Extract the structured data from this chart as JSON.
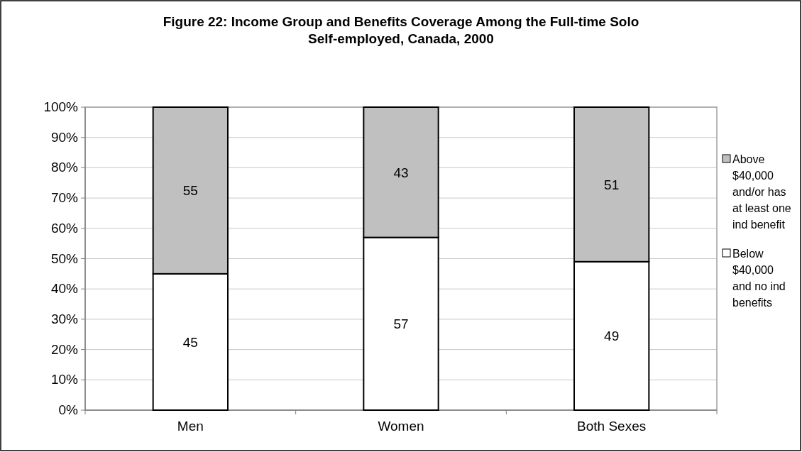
{
  "chart_data": {
    "type": "bar",
    "title": "Figure 22: Income Group and Benefits Coverage Among the Full-time Solo Self-employed, Canada, 2000",
    "categories": [
      "Men",
      "Women",
      "Both Sexes"
    ],
    "series": [
      {
        "name": "Below $40,000 and no ind benefits",
        "color": "#ffffff",
        "values": [
          45,
          57,
          49
        ]
      },
      {
        "name": "Above $40,000 and/or has at least one ind benefit",
        "color": "#c0c0c0",
        "values": [
          55,
          43,
          51
        ]
      }
    ],
    "stacked": true,
    "data_labels": true,
    "grid": "y",
    "legend": "right",
    "ylim": [
      0,
      100
    ],
    "yticks": [
      {
        "value": 0,
        "label": "0%"
      },
      {
        "value": 10,
        "label": "10%"
      },
      {
        "value": 20,
        "label": "20%"
      },
      {
        "value": 30,
        "label": "30%"
      },
      {
        "value": 40,
        "label": "40%"
      },
      {
        "value": 50,
        "label": "50%"
      },
      {
        "value": 60,
        "label": "60%"
      },
      {
        "value": 70,
        "label": "70%"
      },
      {
        "value": 80,
        "label": "80%"
      },
      {
        "value": 90,
        "label": "90%"
      },
      {
        "value": 100,
        "label": "100%"
      }
    ]
  }
}
